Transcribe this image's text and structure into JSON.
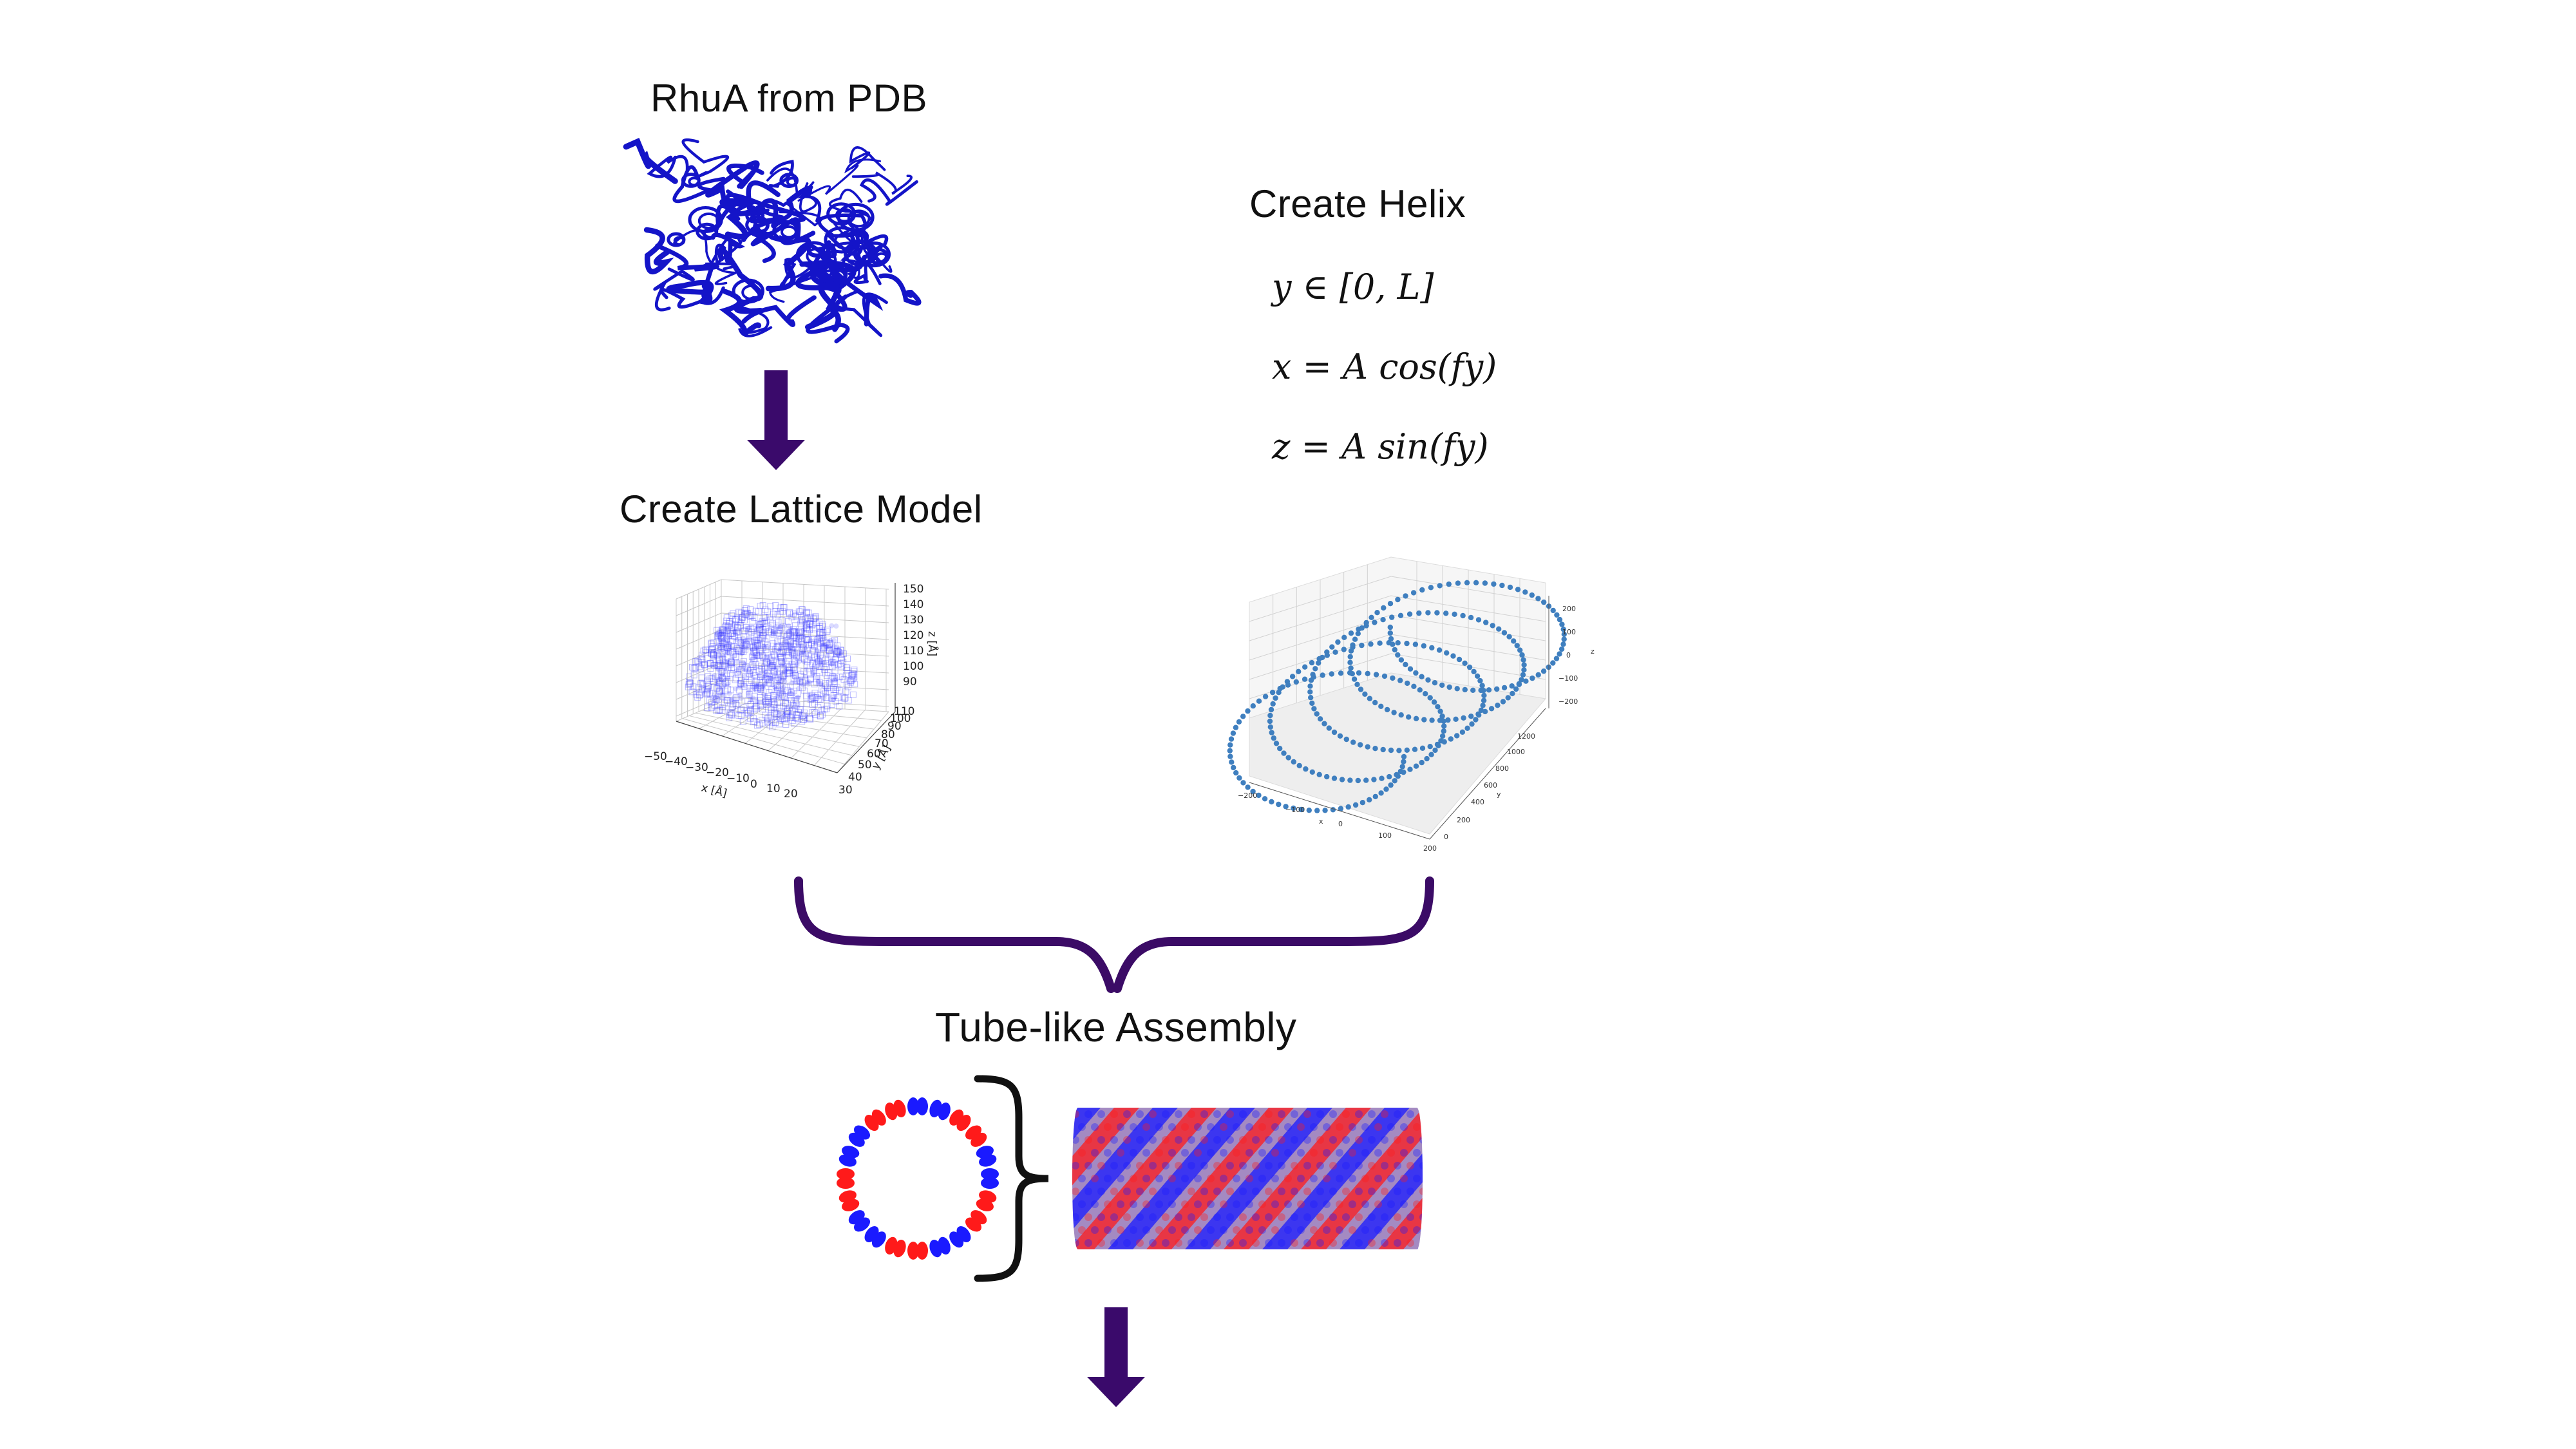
{
  "labels": {
    "rhua": "RhuA from PDB",
    "lattice": "Create Lattice Model",
    "helix": "Create Helix",
    "assembly": "Tube-like Assembly"
  },
  "equations": {
    "eq1": "y  ∈ [0, L]",
    "eq2": "x = A cos(fy)",
    "eq3": "z = A sin(fy)"
  },
  "lattice_plot": {
    "x_axis_label": "x [Å]",
    "y_axis_label": "y [Å]",
    "z_axis_label": "z [Å]",
    "x_ticks": [
      "−50",
      "−40",
      "−30",
      "−20",
      "−10",
      "0",
      "10",
      "20"
    ],
    "y_ticks": [
      "30",
      "40",
      "50",
      "60",
      "70",
      "80",
      "90",
      "100",
      "110"
    ],
    "z_ticks": [
      "90",
      "100",
      "110",
      "120",
      "130",
      "140",
      "150"
    ]
  },
  "helix_plot": {
    "x_axis_label": "x",
    "y_axis_label": "y",
    "z_axis_label": "z",
    "x_ticks": [
      "−200",
      "−100",
      "0",
      "100",
      "200"
    ],
    "y_ticks": [
      "0",
      "200",
      "400",
      "600",
      "800",
      "1000",
      "1200"
    ],
    "z_ticks": [
      "200",
      "100",
      "0",
      "−100",
      "−200"
    ]
  },
  "colors": {
    "arrow": "#3a0a6b",
    "brace": "#3b0b66",
    "protein": "#1414c8",
    "lattice_points": "#3a3aff",
    "helix_points": "#3f7fbf",
    "subunit_red": "#ff1a1a",
    "subunit_blue": "#1a1aff"
  }
}
